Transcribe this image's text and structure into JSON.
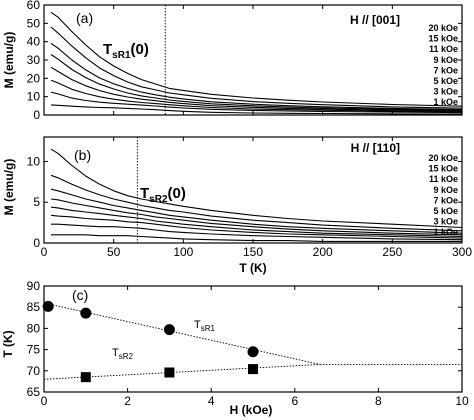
{
  "chart_data": [
    {
      "type": "line",
      "panel": "(a)",
      "field_direction": "H // [001]",
      "xlabel": "",
      "ylabel": "M (emu/g)",
      "xlim": [
        0,
        300
      ],
      "ylim": [
        0,
        60
      ],
      "yticks": [
        "0",
        "10",
        "20",
        "30",
        "40",
        "50",
        "60"
      ],
      "x": [
        5,
        10,
        20,
        30,
        40,
        50,
        60,
        70,
        80,
        90,
        100,
        120,
        150,
        175,
        200,
        250,
        300
      ],
      "series": [
        {
          "name": "20 kOe",
          "values": [
            56.0,
            53.4,
            45.5,
            38.2,
            31.7,
            26.7,
            22.7,
            19.3,
            16.9,
            14.5,
            13.4,
            11.3,
            9.3,
            8.1,
            7.1,
            5.7,
            4.8
          ]
        },
        {
          "name": "15 kOe",
          "values": [
            48.0,
            44.8,
            37.6,
            31.2,
            25.6,
            21.5,
            18.0,
            15.4,
            13.7,
            12.0,
            11.0,
            9.1,
            7.3,
            6.4,
            5.6,
            4.4,
            3.7
          ]
        },
        {
          "name": "11 kOe",
          "values": [
            39.0,
            36.5,
            30.0,
            24.6,
            20.2,
            17.0,
            14.5,
            12.5,
            11.0,
            9.7,
            8.8,
            7.2,
            5.9,
            5.1,
            4.5,
            3.6,
            3.0
          ]
        },
        {
          "name": "9 kOe",
          "values": [
            33.0,
            30.5,
            24.8,
            20.4,
            16.8,
            14.2,
            12.0,
            10.4,
            9.3,
            8.2,
            7.4,
            6.1,
            5.0,
            4.3,
            3.8,
            3.1,
            2.6
          ]
        },
        {
          "name": "7 kOe",
          "values": [
            26.0,
            23.8,
            19.3,
            15.9,
            13.3,
            11.3,
            9.8,
            8.6,
            7.8,
            6.9,
            6.2,
            5.1,
            4.2,
            3.6,
            3.2,
            2.6,
            2.2
          ]
        },
        {
          "name": "5 kOe",
          "values": [
            19.0,
            17.5,
            14.0,
            11.7,
            9.9,
            8.6,
            7.6,
            6.8,
            6.2,
            5.6,
            5.0,
            4.1,
            3.3,
            2.9,
            2.6,
            2.1,
            1.8
          ]
        },
        {
          "name": "3 kOe",
          "values": [
            12.5,
            11.5,
            9.2,
            7.9,
            7.0,
            6.4,
            5.9,
            5.4,
            4.9,
            4.3,
            3.8,
            3.1,
            2.5,
            2.2,
            1.9,
            1.6,
            1.3
          ]
        },
        {
          "name": "1 kOe",
          "values": [
            5.5,
            5.3,
            4.8,
            4.4,
            4.1,
            3.9,
            3.6,
            3.3,
            2.9,
            2.4,
            2.0,
            1.5,
            1.1,
            0.9,
            0.8,
            0.6,
            0.5
          ]
        }
      ],
      "annotation_main": "T",
      "annotation_sub": "sR1",
      "annotation_tail": "(0)",
      "reference_line_x": 87
    },
    {
      "type": "line",
      "panel": "(b)",
      "field_direction": "H // [110]",
      "xlabel": "T (K)",
      "ylabel": "M (emu/g)",
      "xlim": [
        0,
        300
      ],
      "ylim": [
        0,
        13
      ],
      "xticks": [
        "0",
        "50",
        "100",
        "150",
        "200",
        "250",
        "300"
      ],
      "yticks": [
        "0",
        "5",
        "10"
      ],
      "x": [
        5,
        10,
        20,
        30,
        40,
        50,
        60,
        70,
        80,
        90,
        100,
        120,
        150,
        175,
        200,
        250,
        300
      ],
      "series": [
        {
          "name": "20 kOe",
          "values": [
            11.5,
            11.0,
            9.5,
            8.2,
            7.2,
            6.4,
            5.8,
            5.4,
            5.1,
            4.8,
            4.5,
            4.0,
            3.4,
            3.0,
            2.7,
            2.3,
            1.9
          ]
        },
        {
          "name": "15 kOe",
          "values": [
            8.3,
            8.0,
            7.2,
            6.5,
            5.9,
            5.4,
            5.0,
            4.6,
            4.3,
            4.0,
            3.8,
            3.3,
            2.8,
            2.5,
            2.2,
            1.8,
            1.5
          ]
        },
        {
          "name": "11 kOe",
          "values": [
            6.6,
            6.4,
            5.9,
            5.4,
            5.0,
            4.6,
            4.3,
            4.0,
            3.7,
            3.4,
            3.2,
            2.8,
            2.3,
            2.0,
            1.8,
            1.5,
            1.2
          ]
        },
        {
          "name": "9 kOe",
          "values": [
            5.4,
            5.3,
            4.9,
            4.6,
            4.3,
            4.0,
            3.7,
            3.5,
            3.2,
            3.0,
            2.8,
            2.4,
            2.0,
            1.7,
            1.5,
            1.2,
            1.0
          ]
        },
        {
          "name": "7 kOe",
          "values": [
            4.4,
            4.3,
            4.0,
            3.8,
            3.6,
            3.4,
            3.2,
            3.0,
            2.7,
            2.5,
            2.3,
            2.0,
            1.6,
            1.4,
            1.2,
            1.0,
            0.8
          ]
        },
        {
          "name": "5 kOe",
          "values": [
            3.4,
            3.3,
            3.2,
            3.0,
            2.9,
            2.8,
            2.6,
            2.5,
            2.3,
            2.1,
            1.9,
            1.6,
            1.3,
            1.1,
            1.0,
            0.8,
            0.6
          ]
        },
        {
          "name": "3 kOe",
          "values": [
            2.3,
            2.3,
            2.2,
            2.1,
            2.0,
            2.0,
            1.9,
            1.8,
            1.6,
            1.4,
            1.3,
            1.1,
            0.9,
            0.8,
            0.7,
            0.5,
            0.4
          ]
        },
        {
          "name": "1 kOe",
          "values": [
            1.0,
            1.0,
            1.0,
            1.0,
            0.9,
            0.9,
            0.9,
            0.8,
            0.7,
            0.6,
            0.5,
            0.4,
            0.3,
            0.3,
            0.2,
            0.2,
            0.2
          ]
        }
      ],
      "annotation_main": "T",
      "annotation_sub": "sR2",
      "annotation_tail": "(0)",
      "reference_line_x": 67
    },
    {
      "type": "scatter",
      "panel": "(c)",
      "xlabel": "H (kOe)",
      "ylabel": "T (K)",
      "xlim": [
        0,
        10
      ],
      "ylim": [
        65,
        90
      ],
      "xticks": [
        "0",
        "2",
        "4",
        "6",
        "8",
        "10"
      ],
      "yticks": [
        "65",
        "70",
        "75",
        "80",
        "85",
        "90"
      ],
      "series": [
        {
          "name": "TsR1",
          "marker": "circle",
          "points": [
            {
              "x": 0.1,
              "y": 85.2
            },
            {
              "x": 1.0,
              "y": 83.6
            },
            {
              "x": 3.0,
              "y": 79.7
            },
            {
              "x": 5.0,
              "y": 74.5
            }
          ]
        },
        {
          "name": "TsR2",
          "marker": "square",
          "points": [
            {
              "x": 1.0,
              "y": 68.5
            },
            {
              "x": 3.0,
              "y": 69.6
            },
            {
              "x": 5.0,
              "y": 70.4
            }
          ]
        }
      ],
      "fit_lines": [
        {
          "from": {
            "x": 0.0,
            "y": 86.0
          },
          "to": {
            "x": 6.6,
            "y": 71.5
          }
        },
        {
          "from": {
            "x": 0.0,
            "y": 68.0
          },
          "to": {
            "x": 6.6,
            "y": 71.5
          }
        },
        {
          "from": {
            "x": 6.6,
            "y": 71.5
          },
          "to": {
            "x": 10.0,
            "y": 71.5
          }
        }
      ],
      "label_1_main": "T",
      "label_1_sub": "sR1",
      "label_2_main": "T",
      "label_2_sub": "sR2"
    }
  ]
}
